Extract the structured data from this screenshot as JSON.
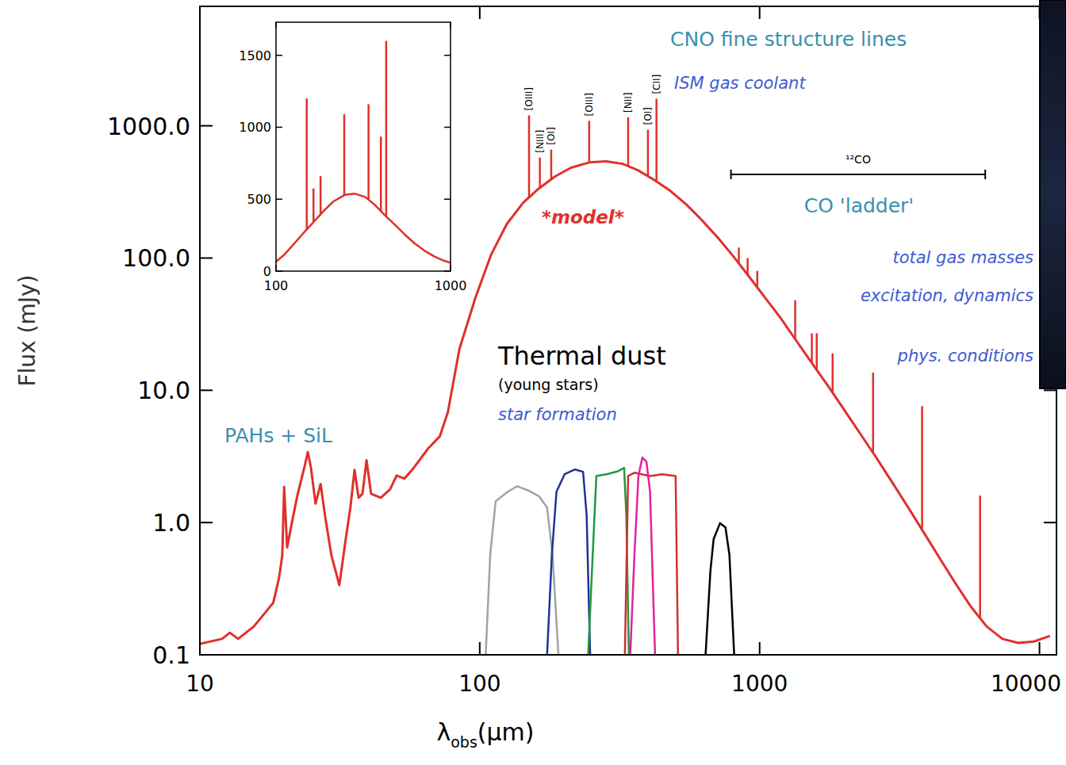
{
  "chart_data": {
    "type": "line",
    "log": true,
    "x_label": {
      "main": "λ",
      "sub": "obs",
      "unit": "(μm)"
    },
    "y_label": "Flux (mJy)",
    "xlim": [
      10,
      11500
    ],
    "ylim": [
      0.1,
      8000
    ],
    "xticks": [
      10,
      100,
      1000,
      10000
    ],
    "yticks": [
      0.1,
      {
        "value": 1,
        "label": "1.0"
      },
      {
        "value": 10,
        "label": "10.0"
      },
      {
        "value": 100,
        "label": "100.0"
      },
      {
        "value": 1000,
        "label": "1000.0"
      }
    ],
    "series": [
      {
        "color": "#e0302c",
        "x": [
          10,
          12.0,
          12.8,
          13.7,
          15.6,
          17.2,
          18.3,
          19.2,
          19.7,
          20.0,
          20.5,
          21.3,
          22.3,
          23.6,
          24.3,
          24.9,
          25.9,
          27.0,
          28.0,
          29.5,
          31.5,
          33.2,
          34.5,
          35.7,
          36.9,
          38.1,
          39.4,
          40.9,
          44.3,
          47.8,
          50.5,
          53.8,
          58.1,
          65.4,
          72.0,
          76.9,
          84.6,
          96.5,
          110,
          125,
          143,
          163,
          186,
          212,
          248,
          283,
          324,
          367,
          418,
          479,
          546,
          621,
          708,
          806,
          915,
          1040,
          1190,
          1350,
          1540,
          1760,
          2000,
          2280,
          2600,
          2960,
          3380,
          3850,
          4380,
          4990,
          5680,
          6470,
          7370,
          8390,
          9550,
          10900
        ],
        "values": [
          0.121,
          0.132,
          0.147,
          0.132,
          0.164,
          0.211,
          0.248,
          0.386,
          0.567,
          1.86,
          0.65,
          0.99,
          1.6,
          2.59,
          3.41,
          2.66,
          1.39,
          1.96,
          1.13,
          0.567,
          0.336,
          0.75,
          1.3,
          2.5,
          1.54,
          1.65,
          2.96,
          1.65,
          1.54,
          1.78,
          2.27,
          2.15,
          2.59,
          3.63,
          4.49,
          6.8,
          20.5,
          50.2,
          107,
          181,
          262,
          337,
          414,
          482,
          530,
          538,
          516,
          462,
          392,
          323,
          255,
          194,
          143,
          103,
          72.8,
          50.9,
          35.1,
          23.8,
          16.0,
          10.7,
          7.18,
          4.75,
          3.14,
          2.05,
          1.32,
          0.848,
          0.546,
          0.351,
          0.232,
          0.164,
          0.132,
          0.123,
          0.126,
          0.139
        ]
      }
    ],
    "lines": [
      {
        "label": "[OIII]",
        "x": 150,
        "value": 1200
      },
      {
        "label": "[NIII]",
        "x": 164,
        "value": 575
      },
      {
        "label": "[OI]",
        "x": 180,
        "value": 660
      },
      {
        "label": "[OIII]",
        "x": 246,
        "value": 1090
      },
      {
        "label": "[NII]",
        "x": 339,
        "value": 1160
      },
      {
        "label": "[OI]",
        "x": 399,
        "value": 935
      },
      {
        "label": "[CII]",
        "x": 428,
        "value": 1600
      }
    ],
    "co_lines": [
      {
        "x": 843,
        "value": 120
      },
      {
        "x": 906,
        "value": 100
      },
      {
        "x": 981,
        "value": 80
      },
      {
        "x": 1340,
        "value": 48
      },
      {
        "x": 1537,
        "value": 27
      },
      {
        "x": 1600,
        "value": 27
      },
      {
        "x": 1823,
        "value": 19
      },
      {
        "x": 2543,
        "value": 13.6
      },
      {
        "x": 3807,
        "value": 7.6
      },
      {
        "x": 6134,
        "value": 1.6
      }
    ],
    "co_range": {
      "label": "¹²CO",
      "values": [
        790,
        6400
      ]
    },
    "filters": [
      {
        "color": "#a3a3a3",
        "x": [
          105,
          109,
          114,
          126,
          136,
          148,
          163,
          174,
          182,
          191
        ],
        "values": [
          0.1,
          0.57,
          1.45,
          1.71,
          1.88,
          1.76,
          1.58,
          1.3,
          0.57,
          0.1
        ]
      },
      {
        "color": "#23309a",
        "x": [
          174,
          181,
          188,
          201,
          219,
          234,
          241,
          248
        ],
        "values": [
          0.1,
          0.57,
          1.71,
          2.32,
          2.52,
          2.42,
          1.13,
          0.1
        ]
      },
      {
        "color": "#1f9a3c",
        "x": [
          244,
          254,
          261,
          284,
          313,
          328,
          334,
          341
        ],
        "values": [
          0.1,
          0.65,
          2.25,
          2.32,
          2.45,
          2.59,
          1.13,
          0.1
        ]
      },
      {
        "color": "#d0312f",
        "x": [
          330,
          339,
          357,
          406,
          448,
          501,
          511
        ],
        "values": [
          0.1,
          2.25,
          2.38,
          2.25,
          2.32,
          2.25,
          0.1
        ]
      },
      {
        "color": "#e2229b",
        "x": [
          345,
          357,
          369,
          381,
          394,
          406,
          423
        ],
        "values": [
          0.1,
          0.57,
          2.25,
          3.1,
          2.89,
          1.71,
          0.1
        ]
      },
      {
        "color": "#000000",
        "x": [
          641,
          667,
          685,
          722,
          755,
          780,
          811
        ],
        "values": [
          0.1,
          0.43,
          0.75,
          0.99,
          0.92,
          0.57,
          0.1
        ]
      }
    ],
    "annotations": [
      "CNO fine structure lines",
      "ISM gas coolant",
      "*model*",
      "CO 'ladder'",
      "total gas masses",
      "excitation, dynamics",
      "phys. conditions",
      "Thermal dust",
      "(young stars)",
      "star formation",
      "PAHs + SiL"
    ],
    "inset": {
      "log": "x",
      "xlim": [
        100,
        1000
      ],
      "ylim": [
        0,
        1730
      ],
      "xticks": [
        100,
        1000
      ],
      "yticks": [
        0,
        500,
        1000,
        1500
      ]
    }
  }
}
